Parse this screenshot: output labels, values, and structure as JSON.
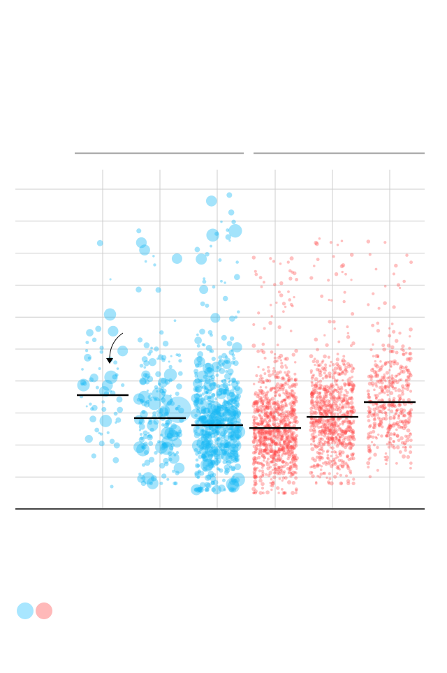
{
  "chart_data": {
    "type": "scatter",
    "title": "",
    "xlabel": "",
    "ylabel": "",
    "grid": true,
    "ylim": [
      0,
      10.5
    ],
    "group_headers": 2,
    "colors": {
      "blue": "#1ab8f5",
      "red": "#ff4a4a",
      "legend_blue": "#a8e6ff",
      "legend_red": "#ffb9b9",
      "median": "#000000",
      "grid": "#cccccc",
      "axis": "#444444"
    },
    "groups": [
      {
        "color": "blue",
        "median": 3.56,
        "count": 60,
        "ymin": 0.7,
        "ymax": 8.7,
        "large_points": true
      },
      {
        "color": "blue",
        "median": 2.84,
        "count": 180,
        "ymin": 0.8,
        "ymax": 9.5,
        "large_points": true
      },
      {
        "color": "blue",
        "median": 2.62,
        "count": 550,
        "ymin": 0.6,
        "ymax": 10.0,
        "large_points": true
      },
      {
        "color": "red",
        "median": 2.53,
        "count": 900,
        "ymin": 0.5,
        "ymax": 7.9,
        "large_points": false
      },
      {
        "color": "red",
        "median": 2.88,
        "count": 750,
        "ymin": 0.8,
        "ymax": 8.5,
        "large_points": false
      },
      {
        "color": "red",
        "median": 3.34,
        "count": 420,
        "ymin": 0.4,
        "ymax": 8.4,
        "large_points": false
      }
    ],
    "annotation": {
      "type": "arrow",
      "group": 1
    }
  }
}
